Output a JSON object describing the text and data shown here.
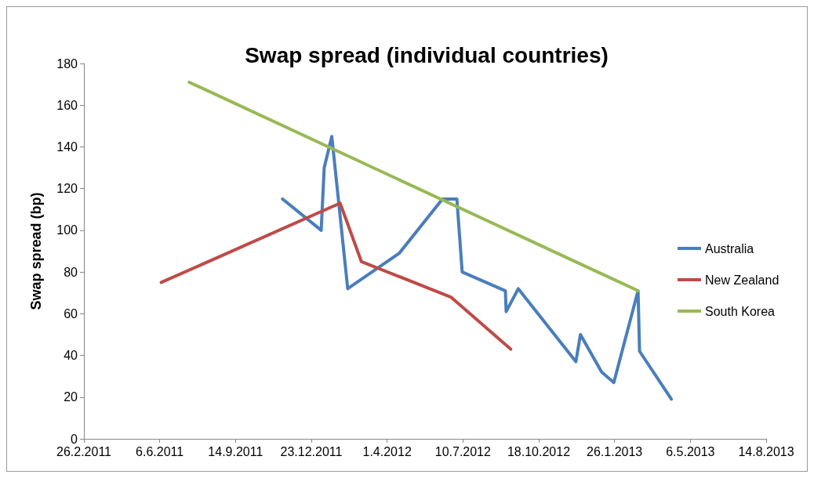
{
  "chart_data": {
    "type": "line",
    "title": "Swap spread (individual countries)",
    "ylabel": "Swap spread (bp)",
    "series": [
      {
        "name": "Australia",
        "color": "#4a7ebb",
        "x": [
          "2011-11-15",
          "2012-01-05",
          "2012-01-09",
          "2012-01-19",
          "2012-02-09",
          "2012-04-17",
          "2012-06-13",
          "2012-07-02",
          "2012-07-09",
          "2012-09-04",
          "2012-09-05",
          "2012-09-21",
          "2012-12-06",
          "2012-12-12",
          "2013-01-09",
          "2013-01-25",
          "2013-02-26",
          "2013-02-28",
          "2013-04-11"
        ],
        "values": [
          115,
          100,
          130,
          145,
          72,
          89,
          115,
          115,
          80,
          71,
          61,
          72,
          37,
          50,
          32,
          27,
          71,
          42,
          19
        ]
      },
      {
        "name": "New Zealand",
        "color": "#be4b48",
        "x": [
          "2011-06-08",
          "2012-01-30",
          "2012-02-27",
          "2012-06-24",
          "2012-09-11"
        ],
        "values": [
          75,
          113,
          85,
          68,
          43
        ]
      },
      {
        "name": "South Korea",
        "color": "#98b954",
        "x": [
          "2011-07-15",
          "2013-02-26"
        ],
        "values": [
          171,
          71
        ]
      }
    ],
    "xlim": [
      "2011-02-26",
      "2013-08-14"
    ],
    "xticks": [
      {
        "value": "2011-02-26",
        "label": "26.2.2011"
      },
      {
        "value": "2011-06-06",
        "label": "6.6.2011"
      },
      {
        "value": "2011-09-14",
        "label": "14.9.2011"
      },
      {
        "value": "2011-12-23",
        "label": "23.12.2011"
      },
      {
        "value": "2012-04-01",
        "label": "1.4.2012"
      },
      {
        "value": "2012-07-10",
        "label": "10.7.2012"
      },
      {
        "value": "2012-10-18",
        "label": "18.10.2012"
      },
      {
        "value": "2013-01-26",
        "label": "26.1.2013"
      },
      {
        "value": "2013-05-06",
        "label": "6.5.2013"
      },
      {
        "value": "2013-08-14",
        "label": "14.8.2013"
      }
    ],
    "ylim": [
      0,
      180
    ],
    "yticks": [
      0,
      20,
      40,
      60,
      80,
      100,
      120,
      140,
      160,
      180
    ],
    "grid": false,
    "legend": "right",
    "marker": "none",
    "line_style": "solid"
  }
}
